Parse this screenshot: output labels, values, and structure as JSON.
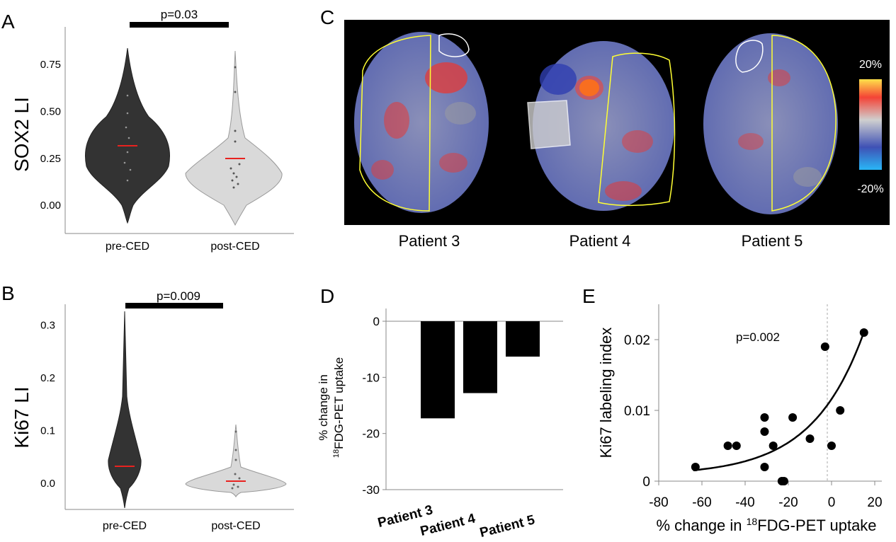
{
  "panels": {
    "A": "A",
    "B": "B",
    "C": "C",
    "D": "D",
    "E": "E"
  },
  "colors": {
    "pre": "#333333",
    "post": "#d6d6d6",
    "median": "#e8221f",
    "brain_warm": "#e53935",
    "brain_cool": "#3f51b5",
    "roi_outline": "#ffff33"
  },
  "chart_data": [
    {
      "panel": "A",
      "type": "violin",
      "categories": [
        "pre-CED",
        "post-CED"
      ],
      "ylabel": "SOX2 LI",
      "yticks": [
        "0.00",
        "0.25",
        "0.50",
        "0.75"
      ],
      "ylim": [
        -0.15,
        0.95
      ],
      "medians": [
        0.27,
        0.19
      ],
      "range_pre": [
        -0.1,
        0.84
      ],
      "range_post": [
        -0.1,
        0.82
      ],
      "annotation": "p=0.03"
    },
    {
      "panel": "B",
      "type": "violin",
      "categories": [
        "pre-CED",
        "post-CED"
      ],
      "ylabel": "Ki67 LI",
      "yticks": [
        "0.0",
        "0.1",
        "0.2",
        "0.3"
      ],
      "ylim": [
        -0.05,
        0.34
      ],
      "medians": [
        0.035,
        0.01
      ],
      "range_pre": [
        -0.04,
        0.32
      ],
      "range_post": [
        -0.01,
        0.11
      ],
      "annotation": "p=0.009"
    },
    {
      "panel": "D",
      "type": "bar",
      "categories": [
        "Patient 3",
        "Patient 4",
        "Patient 5"
      ],
      "values": [
        -17.3,
        -12.8,
        -6.3
      ],
      "yticks": [
        "0",
        "-10",
        "-20",
        "-30"
      ],
      "ylim": [
        -30,
        2
      ],
      "ylabel_line1": "% change in",
      "ylabel_line2_sup": "18",
      "ylabel_line2": "FDG-PET uptake"
    },
    {
      "panel": "E",
      "type": "scatter",
      "xlabel_prefix": "% change in ",
      "xlabel_sup": "18",
      "xlabel_suffix": "FDG-PET uptake",
      "ylabel": "Ki67 labeling index",
      "xticks": [
        "-80",
        "-60",
        "-40",
        "-20",
        "0",
        "20"
      ],
      "yticks": [
        "0",
        "0.01",
        "0.02"
      ],
      "xlim": [
        -80,
        25
      ],
      "ylim": [
        0,
        0.024
      ],
      "annotation": "p=0.002",
      "points": [
        {
          "x": -63,
          "y": 0.002
        },
        {
          "x": -48,
          "y": 0.005
        },
        {
          "x": -44,
          "y": 0.005
        },
        {
          "x": -31,
          "y": 0.009
        },
        {
          "x": -31,
          "y": 0.007
        },
        {
          "x": -27,
          "y": 0.005
        },
        {
          "x": -31,
          "y": 0.002
        },
        {
          "x": -23,
          "y": 0.0
        },
        {
          "x": -22,
          "y": 0.0
        },
        {
          "x": -18,
          "y": 0.009
        },
        {
          "x": -10,
          "y": 0.006
        },
        {
          "x": -3,
          "y": 0.019
        },
        {
          "x": 0,
          "y": 0.005
        },
        {
          "x": 4,
          "y": 0.01
        },
        {
          "x": 15,
          "y": 0.021
        }
      ]
    }
  ],
  "panel_c": {
    "patients": [
      "Patient 3",
      "Patient 4",
      "Patient 5"
    ],
    "colorbar_max": "20%",
    "colorbar_min": "-20%"
  }
}
